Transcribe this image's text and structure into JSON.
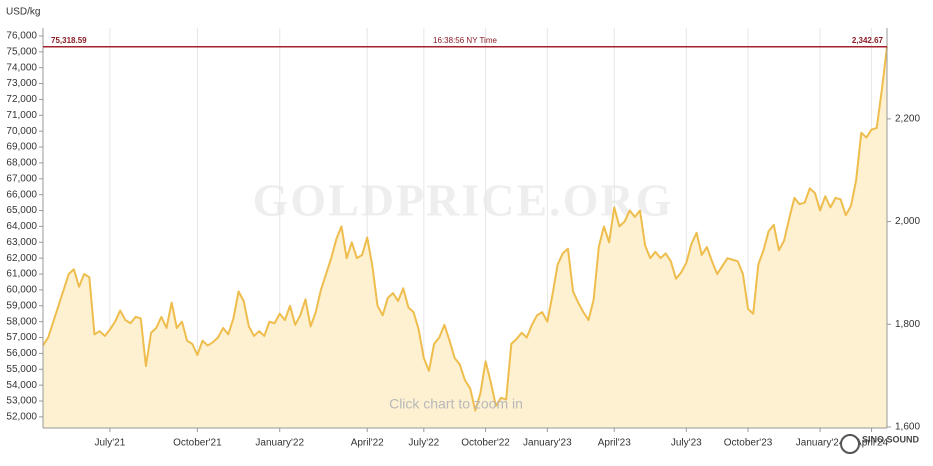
{
  "chart_data": {
    "type": "line",
    "y_label": "USD/kg",
    "watermark": "GOLDPRICE.ORG",
    "annotation": "Click chart to zoom in",
    "logo": "SINO SOUND",
    "time_label": "16:38:56 NY Time",
    "current": {
      "value": 75318.59,
      "label": "75,318.59"
    },
    "current_y2": {
      "value": 2342.67,
      "label": "2,342.67"
    },
    "current_color": "#a3222c",
    "categories": [
      null,
      null,
      null,
      null,
      null,
      null,
      null,
      null,
      null,
      null,
      null,
      null,
      null,
      "July'21",
      null,
      null,
      null,
      null,
      null,
      null,
      null,
      null,
      null,
      null,
      null,
      null,
      null,
      null,
      null,
      null,
      "October'21",
      null,
      null,
      null,
      null,
      null,
      null,
      null,
      null,
      null,
      null,
      null,
      null,
      null,
      null,
      null,
      "January'22",
      null,
      null,
      null,
      null,
      null,
      null,
      null,
      null,
      null,
      null,
      null,
      null,
      null,
      null,
      null,
      null,
      "April'22",
      null,
      null,
      null,
      null,
      null,
      null,
      null,
      null,
      null,
      null,
      "July'22",
      null,
      null,
      null,
      null,
      null,
      null,
      null,
      null,
      null,
      null,
      null,
      "October'22",
      null,
      null,
      null,
      null,
      null,
      null,
      null,
      null,
      null,
      null,
      null,
      "January'23",
      null,
      null,
      null,
      null,
      null,
      null,
      null,
      null,
      null,
      null,
      null,
      null,
      "April'23",
      null,
      null,
      null,
      null,
      null,
      null,
      null,
      null,
      null,
      null,
      null,
      null,
      null,
      "July'23",
      null,
      null,
      null,
      null,
      null,
      null,
      null,
      null,
      null,
      null,
      null,
      "October'23",
      null,
      null,
      null,
      null,
      null,
      null,
      null,
      null,
      null,
      null,
      null,
      null,
      null,
      "January'24",
      null,
      null,
      null,
      null,
      null,
      null,
      null,
      null,
      null,
      "April'24",
      null,
      null,
      null
    ],
    "series": [
      {
        "name": "USD/kg",
        "color": "#eebd4d",
        "fill": "#fdf1d2",
        "values": [
          56500,
          57000,
          58000,
          59000,
          60000,
          61000,
          61300,
          60200,
          61000,
          60800,
          57200,
          57400,
          57100,
          57500,
          58000,
          58700,
          58100,
          57900,
          58300,
          58200,
          55200,
          57300,
          57600,
          58300,
          57600,
          59200,
          57600,
          58000,
          56800,
          56600,
          55900,
          56800,
          56500,
          56700,
          57000,
          57600,
          57200,
          58200,
          59900,
          59300,
          57700,
          57100,
          57400,
          57100,
          58000,
          57900,
          58500,
          58100,
          59000,
          57800,
          58400,
          59400,
          57700,
          58600,
          60000,
          61000,
          62000,
          63200,
          64000,
          62000,
          63000,
          62000,
          62200,
          63300,
          61500,
          59000,
          58400,
          59500,
          59800,
          59300,
          60100,
          58900,
          58600,
          57500,
          55700,
          54900,
          56600,
          57000,
          57800,
          56800,
          55700,
          55300,
          54300,
          53800,
          52400,
          53500,
          55500,
          54200,
          52700,
          53200,
          53100,
          56600,
          56900,
          57300,
          57000,
          57800,
          58400,
          58600,
          58000,
          59700,
          61600,
          62300,
          62600,
          59900,
          59200,
          58600,
          58100,
          59400,
          62700,
          64000,
          63000,
          65200,
          64000,
          64300,
          65000,
          64600,
          65000,
          62800,
          62000,
          62400,
          62000,
          62300,
          61800,
          60700,
          61100,
          61700,
          62900,
          63600,
          62200,
          62700,
          61800,
          61000,
          61500,
          62000,
          61900,
          61800,
          61000,
          58800,
          58500,
          61600,
          62500,
          63700,
          64100,
          62500,
          63100,
          64500,
          65800,
          65400,
          65500,
          66400,
          66100,
          65000,
          65900,
          65200,
          65800,
          65700,
          64700,
          65300,
          66900,
          69900,
          69600,
          70100,
          70200,
          72600,
          75318.59
        ]
      }
    ],
    "ylim": [
      51300,
      76500
    ],
    "yticks": [
      {
        "value": 52000,
        "label": "52,000"
      },
      {
        "value": 53000,
        "label": "53,000"
      },
      {
        "value": 54000,
        "label": "54,000"
      },
      {
        "value": 55000,
        "label": "55,000"
      },
      {
        "value": 56000,
        "label": "56,000"
      },
      {
        "value": 57000,
        "label": "57,000"
      },
      {
        "value": 58000,
        "label": "58,000"
      },
      {
        "value": 59000,
        "label": "59,000"
      },
      {
        "value": 60000,
        "label": "60,000"
      },
      {
        "value": 61000,
        "label": "61,000"
      },
      {
        "value": 62000,
        "label": "62,000"
      },
      {
        "value": 63000,
        "label": "63,000"
      },
      {
        "value": 64000,
        "label": "64,000"
      },
      {
        "value": 65000,
        "label": "65,000"
      },
      {
        "value": 66000,
        "label": "66,000"
      },
      {
        "value": 67000,
        "label": "67,000"
      },
      {
        "value": 68000,
        "label": "68,000"
      },
      {
        "value": 69000,
        "label": "69,000"
      },
      {
        "value": 70000,
        "label": "70,000"
      },
      {
        "value": 71000,
        "label": "71,000"
      },
      {
        "value": 72000,
        "label": "72,000"
      },
      {
        "value": 73000,
        "label": "73,000"
      },
      {
        "value": 74000,
        "label": "74,000"
      },
      {
        "value": 75000,
        "label": "75,000"
      },
      {
        "value": 76000,
        "label": "76,000"
      }
    ],
    "y2lim": [
      1598,
      2377
    ],
    "y2ticks": [
      {
        "value": 1600,
        "label": "1,600"
      },
      {
        "value": 1800,
        "label": "1,800"
      },
      {
        "value": 2000,
        "label": "2,000"
      },
      {
        "value": 2200,
        "label": "2,200"
      }
    ],
    "grid": "x"
  }
}
